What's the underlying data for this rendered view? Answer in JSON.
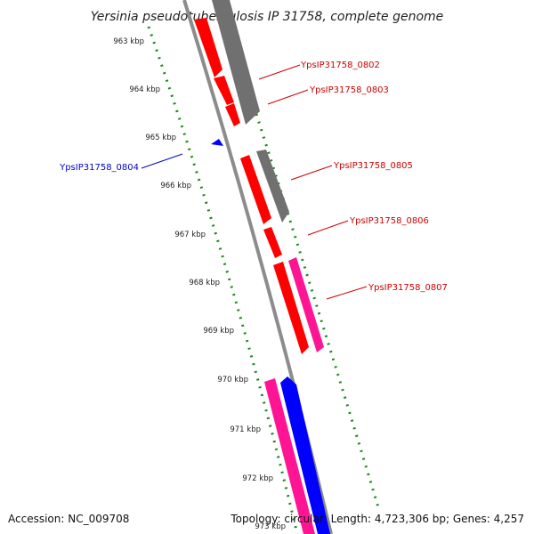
{
  "title": "Yersinia pseudotuberculosis IP 31758, complete genome",
  "accession": "Accession: NC_009708",
  "topology": "Topology: circular; Length: 4,723,306 bp; Genes: 4,257",
  "colors": {
    "forward_cds": "#ff0000",
    "reverse_cds": "#0000ff",
    "rna": "#ff1493",
    "other_strand": "#707070",
    "backbone": "#8c8c8c",
    "ticks": "#1a8a1a",
    "label_red": "#cc0000",
    "label_blue": "#0000cc"
  },
  "ticks": [
    {
      "label": "963 kbp"
    },
    {
      "label": "964 kbp"
    },
    {
      "label": "965 kbp"
    },
    {
      "label": "966 kbp"
    },
    {
      "label": "967 kbp"
    },
    {
      "label": "968 kbp"
    },
    {
      "label": "969 kbp"
    },
    {
      "label": "970 kbp"
    },
    {
      "label": "971 kbp"
    },
    {
      "label": "972 kbp"
    },
    {
      "label": "973 kbp"
    }
  ],
  "gene_labels": [
    {
      "name": "YpsIP31758_0802",
      "strand": "forward"
    },
    {
      "name": "YpsIP31758_0803",
      "strand": "forward"
    },
    {
      "name": "YpsIP31758_0804",
      "strand": "reverse"
    },
    {
      "name": "YpsIP31758_0805",
      "strand": "forward"
    },
    {
      "name": "YpsIP31758_0806",
      "strand": "forward"
    },
    {
      "name": "YpsIP31758_0807",
      "strand": "forward"
    }
  ]
}
